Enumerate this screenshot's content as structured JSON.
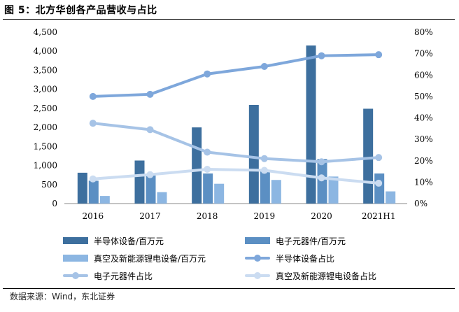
{
  "figure": {
    "title": "图 5：北方华创各产品营收与占比",
    "source_label": "数据来源：",
    "source_text": "Wind，东北证券"
  },
  "chart_data": {
    "type": "bar+line",
    "categories": [
      "2016",
      "2017",
      "2018",
      "2019",
      "2020",
      "2021H1"
    ],
    "left_axis": {
      "min": 0,
      "max": 4500,
      "step": 500,
      "tick_labels": [
        "0",
        "500",
        "1,000",
        "1,500",
        "2,000",
        "2,500",
        "3,000",
        "3,500",
        "4,000",
        "4,500"
      ]
    },
    "right_axis": {
      "min": 0,
      "max": 80,
      "step": 10,
      "tick_labels": [
        "0%",
        "10%",
        "20%",
        "30%",
        "40%",
        "50%",
        "60%",
        "70%",
        "80%"
      ]
    },
    "bar_series": [
      {
        "name": "半导体设备/百万元",
        "color": "#3d6f9e",
        "values": [
          810,
          1130,
          2000,
          2590,
          4150,
          2490
        ]
      },
      {
        "name": "电子元器件/百万元",
        "color": "#5b8fc3",
        "values": [
          600,
          760,
          790,
          870,
          1170,
          790
        ]
      },
      {
        "name": "真空及新能源锂电设备/百万元",
        "color": "#8cb6e2",
        "values": [
          200,
          300,
          520,
          620,
          710,
          320
        ]
      }
    ],
    "line_series": [
      {
        "name": "半导体设备占比",
        "color": "#7ea7db",
        "marker": true,
        "values": [
          50.0,
          51.0,
          60.5,
          64.0,
          69.0,
          69.5
        ]
      },
      {
        "name": "电子元器件占比",
        "color": "#a6c3e6",
        "marker": true,
        "values": [
          37.5,
          34.5,
          24.0,
          21.0,
          19.5,
          21.5
        ]
      },
      {
        "name": "真空及新能源锂电设备占比",
        "color": "#cbdcf1",
        "marker": true,
        "values": [
          11.5,
          13.5,
          16.0,
          15.5,
          12.0,
          9.5
        ]
      }
    ]
  }
}
